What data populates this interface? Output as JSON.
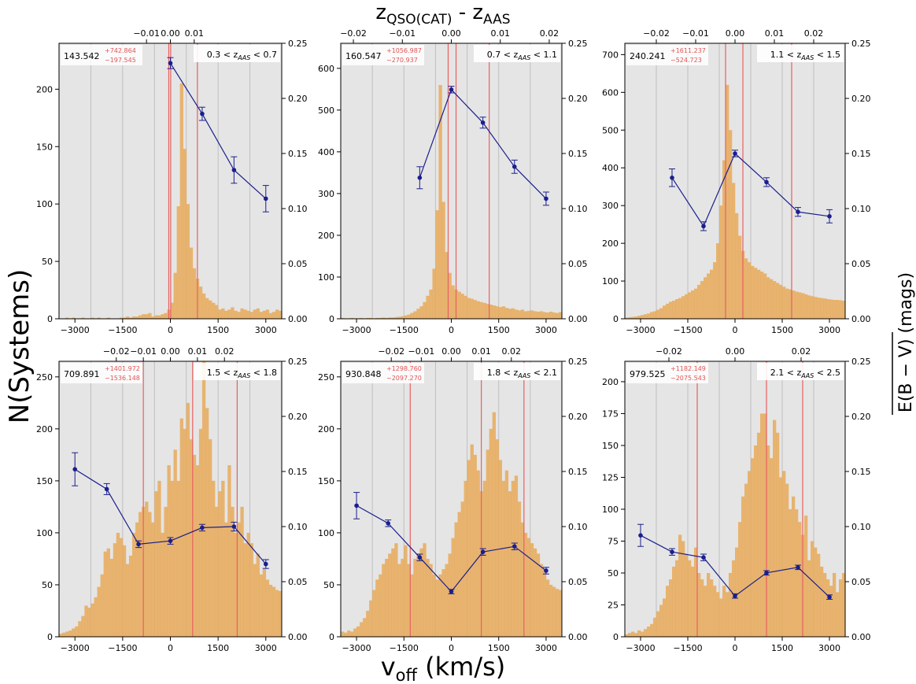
{
  "figure": {
    "top_title": "z",
    "top_title_sub": "QSO(CAT)",
    "top_title_mid": " - z",
    "top_title_sub2": "AAS",
    "bottom_title": "v",
    "bottom_title_sub": "off",
    "bottom_title_unit": " (km/s)",
    "left_label": "N(Systems)",
    "right_label": "E(B − V) (mags)"
  },
  "colors": {
    "panel_bg": "#e5e5e5",
    "hist_fill": "#e8aa5a",
    "vline_red": "#e86060",
    "grid_gray": "#bfbfbf",
    "series_blue": "#1a1f8c",
    "median_text": "#e05555"
  },
  "chart_data": [
    {
      "type": "bar",
      "xlabel": "",
      "ylabel": "",
      "xlim": [
        -3500,
        3500
      ],
      "ylim": [
        0,
        240
      ],
      "y2lim": [
        0,
        0.25
      ],
      "xticks": [
        -3000,
        -1500,
        0,
        1500,
        3000
      ],
      "xtick_labels": [
        "−3000",
        "−1500",
        "0",
        "1500",
        "3000"
      ],
      "yticks": [
        0,
        50,
        100,
        150,
        200
      ],
      "y2ticks": [
        0,
        0.05,
        0.1,
        0.15,
        0.2,
        0.25
      ],
      "y2tick_labels": [
        "0.00",
        "0.05",
        "0.10",
        "0.15",
        "0.20",
        "0.25"
      ],
      "top_ticks": [
        -0.01,
        0,
        0.01
      ],
      "top_tick_labels": [
        "−0.01",
        "0.00",
        "0.01"
      ],
      "top_kms_per_unit": 75000,
      "gray_lines": [
        -2500,
        -1500,
        -500,
        500,
        1500,
        2500
      ],
      "red_lines": [
        -50,
        10,
        850
      ],
      "median_text": "143.542",
      "median_sup": "+742.864",
      "median_sub": "−197.545",
      "zbin_prefix": "0.3 < z",
      "zbin_sub": "AAS",
      "zbin_suffix": " < 0.7",
      "hist_bins": [
        {
          "x0": -500,
          "x1": 500,
          "w": 100
        }
      ],
      "hist_values": [
        2,
        3,
        3,
        4,
        5,
        8,
        14,
        40,
        98,
        205,
        148,
        100,
        62,
        44,
        35,
        28,
        22,
        18,
        16,
        14
      ],
      "hist_left": [
        0,
        0,
        1,
        0,
        1,
        0,
        0,
        1,
        0,
        0,
        1,
        0,
        1,
        0,
        0,
        1,
        0,
        0,
        0,
        1,
        1,
        2,
        1,
        2,
        2,
        3,
        4,
        4,
        5
      ],
      "hist_right": [
        12,
        8,
        9,
        7,
        8,
        10,
        7,
        6,
        9,
        8,
        7,
        6,
        8,
        9,
        6,
        7,
        8,
        5,
        6,
        8,
        7,
        5,
        6,
        4,
        5,
        6,
        5,
        4,
        3,
        4
      ],
      "series_x": [
        0,
        1000,
        2000,
        3000
      ],
      "series_y": [
        0.232,
        0.186,
        0.135,
        0.109
      ],
      "series_err": [
        0.005,
        0.006,
        0.012,
        0.012
      ]
    },
    {
      "type": "bar",
      "xlabel": "",
      "ylabel": "",
      "xlim": [
        -3500,
        3500
      ],
      "ylim": [
        0,
        660
      ],
      "y2lim": [
        0,
        0.25
      ],
      "xticks": [
        -3000,
        -1500,
        0,
        1500,
        3000
      ],
      "xtick_labels": [
        "−3000",
        "−1500",
        "0",
        "1500",
        "3000"
      ],
      "yticks": [
        0,
        100,
        200,
        300,
        400,
        500,
        600
      ],
      "y2ticks": [
        0,
        0.05,
        0.1,
        0.15,
        0.2,
        0.25
      ],
      "y2tick_labels": [
        "0.00",
        "0.05",
        "0.10",
        "0.15",
        "0.20",
        "0.25"
      ],
      "top_ticks": [
        -0.02,
        -0.01,
        0,
        0.01,
        0.02
      ],
      "top_tick_labels": [
        "−0.02",
        "−0.01",
        "0.00",
        "0.01",
        "0.02"
      ],
      "top_kms_per_unit": 155000,
      "gray_lines": [
        -2500,
        -1500,
        -500,
        500,
        1500,
        2500
      ],
      "red_lines": [
        -100,
        150,
        1200
      ],
      "median_text": "160.547",
      "median_sup": "+1056.987",
      "median_sub": "−270.937",
      "zbin_prefix": "0.7 < z",
      "zbin_sub": "AAS",
      "zbin_suffix": " < 1.1",
      "hist_values_full": {
        "x0": -3500,
        "w": 100,
        "v": [
          2,
          1,
          1,
          2,
          1,
          1,
          2,
          1,
          2,
          2,
          1,
          2,
          2,
          3,
          2,
          3,
          3,
          4,
          5,
          6,
          8,
          10,
          14,
          18,
          24,
          30,
          40,
          55,
          70,
          120,
          260,
          560,
          280,
          160,
          110,
          80,
          70,
          65,
          60,
          55,
          50,
          48,
          45,
          42,
          40,
          38,
          36,
          34,
          32,
          30,
          28,
          30,
          26,
          24,
          25,
          22,
          20,
          22,
          18,
          19,
          20,
          18,
          17,
          18,
          16,
          15,
          17,
          15,
          14,
          16
        ]
      },
      "series_x": [
        -1000,
        0,
        1000,
        2000,
        3000
      ],
      "series_y": [
        0.128,
        0.208,
        0.178,
        0.138,
        0.109
      ],
      "series_err": [
        0.01,
        0.003,
        0.005,
        0.006,
        0.006
      ]
    },
    {
      "type": "bar",
      "xlabel": "",
      "ylabel": "",
      "xlim": [
        -3500,
        3500
      ],
      "ylim": [
        0,
        730
      ],
      "y2lim": [
        0,
        0.25
      ],
      "xticks": [
        -3000,
        -1500,
        0,
        1500,
        3000
      ],
      "xtick_labels": [
        "−3000",
        "−1500",
        "0",
        "1500",
        "3000"
      ],
      "yticks": [
        0,
        100,
        200,
        300,
        400,
        500,
        600,
        700
      ],
      "y2ticks": [
        0,
        0.05,
        0.1,
        0.15,
        0.2,
        0.25
      ],
      "y2tick_labels": [
        "0.00",
        "0.05",
        "0.10",
        "0.15",
        "0.20",
        "0.25"
      ],
      "top_ticks": [
        -0.02,
        -0.01,
        0,
        0.01,
        0.02
      ],
      "top_tick_labels": [
        "−0.02",
        "−0.01",
        "0.00",
        "0.01",
        "0.02"
      ],
      "top_kms_per_unit": 125000,
      "gray_lines": [
        -2500,
        -1500,
        -500,
        500,
        1500,
        2500
      ],
      "red_lines": [
        -300,
        250,
        1800
      ],
      "median_text": "240.241",
      "median_sup": "+1611.237",
      "median_sub": "−524.723",
      "zbin_prefix": "1.1 < z",
      "zbin_sub": "AAS",
      "zbin_suffix": " < 1.5",
      "hist_values_full": {
        "x0": -3500,
        "w": 100,
        "v": [
          3,
          4,
          5,
          6,
          8,
          10,
          12,
          14,
          18,
          20,
          24,
          28,
          35,
          40,
          45,
          48,
          52,
          55,
          60,
          65,
          70,
          75,
          80,
          90,
          100,
          110,
          120,
          130,
          150,
          200,
          300,
          420,
          620,
          500,
          360,
          280,
          220,
          180,
          160,
          150,
          140,
          135,
          130,
          125,
          120,
          110,
          105,
          100,
          95,
          90,
          85,
          80,
          78,
          75,
          72,
          70,
          68,
          65,
          62,
          60,
          58,
          56,
          55,
          54,
          52,
          51,
          50,
          50,
          49,
          48
        ]
      },
      "series_x": [
        -2000,
        -1000,
        0,
        1000,
        2000,
        3000
      ],
      "series_y": [
        0.128,
        0.084,
        0.15,
        0.124,
        0.097,
        0.093
      ],
      "series_err": [
        0.008,
        0.004,
        0.003,
        0.004,
        0.004,
        0.006
      ]
    },
    {
      "type": "bar",
      "xlabel": "",
      "ylabel": "",
      "xlim": [
        -3500,
        3500
      ],
      "ylim": [
        0,
        265
      ],
      "y2lim": [
        0,
        0.25
      ],
      "xticks": [
        -3000,
        -1500,
        0,
        1500,
        3000
      ],
      "xtick_labels": [
        "−3000",
        "−1500",
        "0",
        "1500",
        "3000"
      ],
      "yticks": [
        0,
        50,
        100,
        150,
        200,
        250
      ],
      "y2ticks": [
        0,
        0.05,
        0.1,
        0.15,
        0.2,
        0.25
      ],
      "y2tick_labels": [
        "0.00",
        "0.05",
        "0.10",
        "0.15",
        "0.20",
        "0.25"
      ],
      "top_ticks": [
        -0.02,
        -0.01,
        0,
        0.01,
        0.02
      ],
      "top_tick_labels": [
        "−0.02",
        "−0.01",
        "0.00",
        "0.01",
        "0.02"
      ],
      "top_kms_per_unit": 85000,
      "gray_lines": [
        -2500,
        -1500,
        -500,
        500,
        1500,
        2500
      ],
      "red_lines": [
        -850,
        700,
        2100
      ],
      "median_text": "709.891",
      "median_sup": "+1401.972",
      "median_sub": "−1536.148",
      "zbin_prefix": "1.5 < z",
      "zbin_sub": "AAS",
      "zbin_suffix": " < 1.8",
      "hist_values_full": {
        "x0": -3500,
        "w": 100,
        "v": [
          3,
          4,
          5,
          6,
          8,
          10,
          15,
          20,
          30,
          28,
          32,
          38,
          48,
          60,
          82,
          85,
          75,
          90,
          100,
          95,
          88,
          70,
          78,
          100,
          110,
          120,
          125,
          130,
          120,
          110,
          140,
          150,
          100,
          125,
          165,
          150,
          180,
          150,
          210,
          200,
          225,
          190,
          175,
          165,
          200,
          265,
          220,
          190,
          150,
          125,
          140,
          150,
          110,
          165,
          125,
          100,
          110,
          125,
          90,
          100,
          90,
          70,
          80,
          60,
          65,
          55,
          50,
          48,
          45,
          44
        ]
      },
      "series_x": [
        -3000,
        -2000,
        -1000,
        0,
        1000,
        2000,
        3000
      ],
      "series_y": [
        0.152,
        0.134,
        0.084,
        0.087,
        0.099,
        0.1,
        0.066
      ],
      "series_err": [
        0.015,
        0.005,
        0.003,
        0.003,
        0.003,
        0.004,
        0.004
      ]
    },
    {
      "type": "bar",
      "xlabel": "",
      "ylabel": "",
      "xlim": [
        -3500,
        3500
      ],
      "ylim": [
        0,
        265
      ],
      "y2lim": [
        0,
        0.25
      ],
      "xticks": [
        -3000,
        -1500,
        0,
        1500,
        3000
      ],
      "xtick_labels": [
        "−3000",
        "−1500",
        "0",
        "1500",
        "3000"
      ],
      "yticks": [
        0,
        50,
        100,
        150,
        200,
        250
      ],
      "y2ticks": [
        0,
        0.05,
        0.1,
        0.15,
        0.2,
        0.25
      ],
      "y2tick_labels": [
        "0.00",
        "0.05",
        "0.10",
        "0.15",
        "0.20",
        "0.25"
      ],
      "top_ticks": [
        -0.02,
        -0.01,
        0,
        0.01,
        0.02
      ],
      "top_tick_labels": [
        "−0.02",
        "−0.01",
        "0.00",
        "0.01",
        "0.02"
      ],
      "top_kms_per_unit": 95000,
      "gray_lines": [
        -2500,
        -1500,
        -500,
        500,
        1500,
        2500
      ],
      "red_lines": [
        -1300,
        950,
        2300
      ],
      "median_text": "930.848",
      "median_sup": "+1298.760",
      "median_sub": "−2097.270",
      "zbin_prefix": "1.8 < z",
      "zbin_sub": "AAS",
      "zbin_suffix": " < 2.1",
      "hist_values_full": {
        "x0": -3500,
        "w": 100,
        "v": [
          5,
          4,
          6,
          5,
          8,
          10,
          14,
          18,
          25,
          35,
          45,
          55,
          60,
          70,
          75,
          80,
          85,
          90,
          70,
          75,
          88,
          70,
          60,
          75,
          80,
          85,
          90,
          75,
          70,
          60,
          55,
          60,
          65,
          70,
          80,
          95,
          110,
          120,
          130,
          150,
          170,
          185,
          175,
          160,
          140,
          150,
          180,
          200,
          216,
          190,
          170,
          150,
          160,
          140,
          150,
          155,
          130,
          110,
          100,
          95,
          90,
          85,
          80,
          70,
          65,
          55,
          50,
          48,
          46,
          45
        ]
      },
      "series_x": [
        -3000,
        -2000,
        -1000,
        0,
        1000,
        2000,
        3000
      ],
      "series_y": [
        0.119,
        0.103,
        0.072,
        0.041,
        0.077,
        0.082,
        0.06
      ],
      "series_err": [
        0.012,
        0.003,
        0.003,
        0.002,
        0.003,
        0.003,
        0.003
      ]
    },
    {
      "type": "bar",
      "xlabel": "",
      "ylabel": "",
      "xlim": [
        -3500,
        3500
      ],
      "ylim": [
        0,
        216
      ],
      "y2lim": [
        0,
        0.25
      ],
      "xticks": [
        -3000,
        -1500,
        0,
        1500,
        3000
      ],
      "xtick_labels": [
        "−3000",
        "−1500",
        "0",
        "1500",
        "3000"
      ],
      "yticks": [
        0,
        25,
        50,
        75,
        100,
        125,
        150,
        175,
        200
      ],
      "y2ticks": [
        0,
        0.05,
        0.1,
        0.15,
        0.2,
        0.25
      ],
      "y2tick_labels": [
        "0.00",
        "0.05",
        "0.10",
        "0.15",
        "0.20",
        "0.25"
      ],
      "top_ticks": [
        -0.02,
        0,
        0.02
      ],
      "top_tick_labels": [
        "−0.02",
        "0.00",
        "0.02"
      ],
      "top_kms_per_unit": 105000,
      "gray_lines": [
        -2500,
        -1500,
        -500,
        500,
        1500,
        2500
      ],
      "red_lines": [
        -1200,
        1000,
        2150
      ],
      "median_text": "979.525",
      "median_sup": "+1182.149",
      "median_sub": "−2075.543",
      "zbin_prefix": "2.1 < z",
      "zbin_sub": "AAS",
      "zbin_suffix": " < 2.5",
      "hist_values_full": {
        "x0": -3500,
        "w": 100,
        "v": [
          2,
          3,
          4,
          3,
          5,
          4,
          6,
          8,
          10,
          15,
          20,
          25,
          30,
          40,
          45,
          55,
          60,
          80,
          75,
          65,
          60,
          55,
          70,
          50,
          45,
          40,
          50,
          45,
          40,
          35,
          30,
          40,
          35,
          50,
          60,
          70,
          90,
          110,
          120,
          130,
          140,
          150,
          160,
          175,
          175,
          150,
          140,
          170,
          160,
          125,
          130,
          120,
          100,
          110,
          100,
          90,
          80,
          95,
          60,
          75,
          70,
          65,
          55,
          50,
          45,
          40,
          50,
          35,
          45,
          50
        ]
      },
      "series_x": [
        -3000,
        -2000,
        -1000,
        0,
        1000,
        2000,
        3000
      ],
      "series_y": [
        0.092,
        0.077,
        0.072,
        0.037,
        0.058,
        0.063,
        0.036
      ],
      "series_err": [
        0.01,
        0.003,
        0.003,
        0.002,
        0.002,
        0.002,
        0.002
      ]
    }
  ]
}
